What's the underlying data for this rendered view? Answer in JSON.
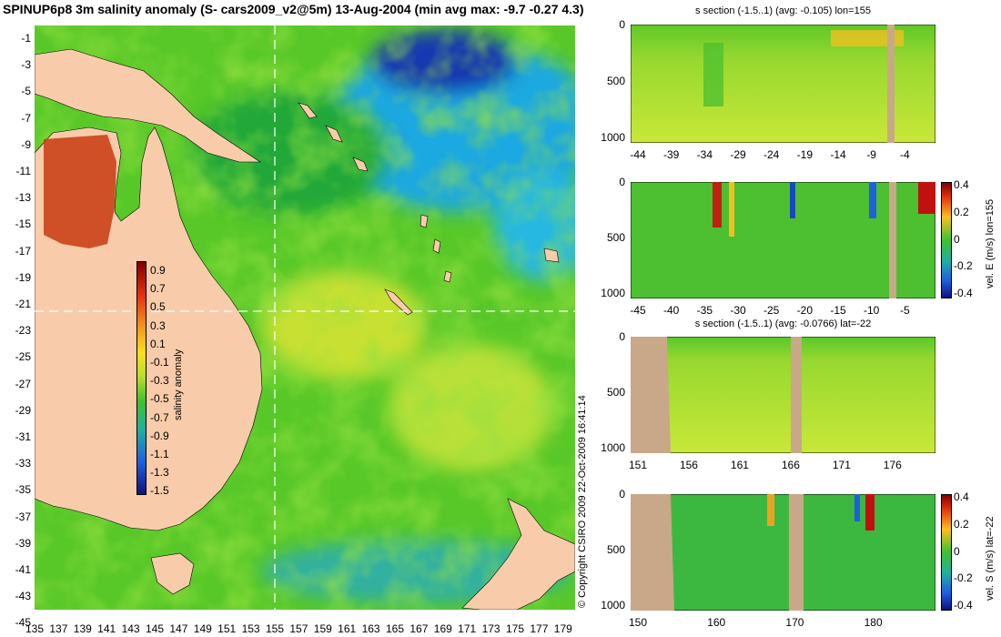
{
  "header": {
    "title": "SPINUP6p8 3m salinity anomaly (S- cars2009_v2@5m) 13-Aug-2004 (min avg max: -9.7 -0.27 4.3)"
  },
  "side_note": "© Copyright CSIRO 2009   22-Oct-2009 16:41:14",
  "colors": {
    "land": "#f8ccaa",
    "section_land": "#c8a888",
    "ocean_mid": "#58c828",
    "ocean_fresh": "#1060d0",
    "ocean_salty": "#d03010"
  },
  "chart_data": [
    {
      "type": "heatmap",
      "name": "map",
      "title": "SPINUP6p8 3m salinity anomaly (S- cars2009_v2@5m) 13-Aug-2004 (min avg max: -9.7 -0.27 4.3)",
      "xlabel": "",
      "ylabel": "",
      "xlim": [
        135,
        180
      ],
      "ylim": [
        -45,
        0
      ],
      "x_ticks": [
        "135",
        "137",
        "139",
        "141",
        "143",
        "145",
        "147",
        "149",
        "151",
        "153",
        "155",
        "157",
        "159",
        "161",
        "163",
        "165",
        "167",
        "169",
        "171",
        "173",
        "175",
        "177",
        "179"
      ],
      "y_ticks": [
        "-1",
        "-3",
        "-5",
        "-7",
        "-9",
        "-11",
        "-13",
        "-15",
        "-17",
        "-19",
        "-21",
        "-23",
        "-25",
        "-27",
        "-29",
        "-31",
        "-33",
        "-35",
        "-37",
        "-39",
        "-41",
        "-43",
        "-45"
      ],
      "section_lines": {
        "lon": 155,
        "lat": -22
      },
      "colorbar": {
        "label": "salinity anomaly",
        "ticks": [
          "0.9",
          "0.7",
          "0.5",
          "0.3",
          "0.1",
          "-0.1",
          "-0.3",
          "-0.5",
          "-0.7",
          "-0.9",
          "-1.1",
          "-1.3",
          "-1.5"
        ],
        "range": [
          -1.6,
          1.0
        ]
      }
    },
    {
      "type": "heatmap",
      "name": "s-section-lon155",
      "title": "s section (-1.5..1) (avg: -0.105) lon=155",
      "x_ticks": [
        "-44",
        "-39",
        "-34",
        "-29",
        "-24",
        "-19",
        "-14",
        "-9",
        "-4"
      ],
      "y_ticks": [
        "0",
        "500",
        "1000"
      ],
      "xlim": [
        -45,
        -1
      ],
      "ylim": [
        1050,
        0
      ]
    },
    {
      "type": "heatmap",
      "name": "velE-section-lon155",
      "title": "",
      "x_ticks": [
        "-45",
        "-40",
        "-35",
        "-30",
        "-25",
        "-20",
        "-15",
        "-10",
        "-5"
      ],
      "y_ticks": [
        "0",
        "500",
        "1000"
      ],
      "xlim": [
        -45,
        -1
      ],
      "ylim": [
        1050,
        0
      ],
      "colorbar": {
        "label": "vel. E (m/s) lon=155",
        "ticks": [
          "0.4",
          "0.2",
          "0",
          "-0.2",
          "-0.4"
        ],
        "range": [
          -0.45,
          0.5
        ]
      }
    },
    {
      "type": "heatmap",
      "name": "s-section-lat-22",
      "title": "s section (-1.5..1) (avg: -0.0766) lat=-22",
      "x_ticks": [
        "151",
        "156",
        "161",
        "166",
        "171",
        "176"
      ],
      "y_ticks": [
        "0",
        "500",
        "1000"
      ],
      "xlim": [
        150,
        180
      ],
      "ylim": [
        1050,
        0
      ]
    },
    {
      "type": "heatmap",
      "name": "velS-section-lat-22",
      "title": "",
      "x_ticks": [
        "150",
        "160",
        "170",
        "180"
      ],
      "y_ticks": [
        "0",
        "500",
        "1000"
      ],
      "xlim": [
        150,
        180
      ],
      "ylim": [
        1050,
        0
      ],
      "colorbar": {
        "label": "vel. S (m/s) lat=-22",
        "ticks": [
          "0.4",
          "0.2",
          "0",
          "-0.2",
          "-0.4"
        ],
        "range": [
          -0.45,
          0.5
        ]
      }
    }
  ]
}
